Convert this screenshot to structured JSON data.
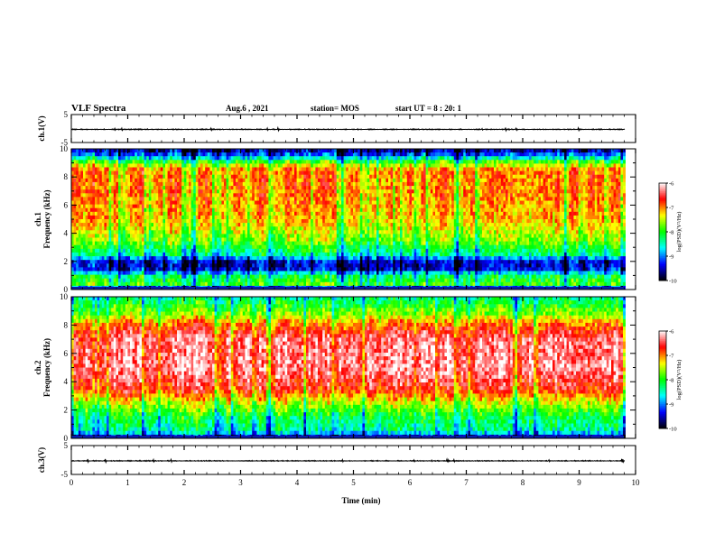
{
  "header": {
    "title": "VLF Spectra",
    "date": "Aug.6  , 2021",
    "station": "station= MOS",
    "start": "start  UT  =   8 : 20: 1"
  },
  "chart_data": {
    "type": "heatmap",
    "x_axis": {
      "label": "Time  (min)",
      "range": [
        0,
        10
      ],
      "ticks": [
        0,
        1,
        2,
        3,
        4,
        5,
        6,
        7,
        8,
        9,
        10
      ],
      "tick_labels": [
        "0",
        "1",
        "2",
        "3",
        "4",
        "5",
        "6",
        "7",
        "8",
        "9",
        "10"
      ],
      "data_end": 9.8
    },
    "panels": [
      {
        "id": "ch1_waveform",
        "type": "line",
        "ylabel": "ch.1(V)",
        "ylim": [
          -5,
          5
        ],
        "tick_labels": [
          "5",
          "-5"
        ]
      },
      {
        "id": "ch1_spectrogram",
        "type": "heatmap",
        "ylabel": "Frequency  (kHz)",
        "channel_label": "ch.1",
        "ylim": [
          0,
          10
        ],
        "yticks": [
          0,
          2,
          4,
          6,
          8,
          10
        ],
        "ytick_labels": [
          "0",
          "2",
          "4",
          "6",
          "8",
          "10"
        ],
        "colorbar": {
          "label": "log(PSD)(V²/Hz)",
          "range": [
            -10,
            -6
          ],
          "tick_labels": [
            "-6",
            "-7",
            "-8",
            "-9",
            "-10"
          ]
        },
        "profile_kHz_to_logPSD": [
          [
            0,
            -9.6
          ],
          [
            0.4,
            -7.8
          ],
          [
            1.0,
            -8.2
          ],
          [
            1.5,
            -9.4
          ],
          [
            2.0,
            -9.3
          ],
          [
            2.5,
            -8.3
          ],
          [
            3.5,
            -7.6
          ],
          [
            5.0,
            -7.1
          ],
          [
            7.0,
            -6.9
          ],
          [
            8.5,
            -6.9
          ],
          [
            9.0,
            -7.6
          ],
          [
            9.5,
            -8.9
          ],
          [
            10,
            -9.6
          ]
        ]
      },
      {
        "id": "ch2_spectrogram",
        "type": "heatmap",
        "ylabel": "Frequency  (kHz)",
        "channel_label": "ch.2",
        "ylim": [
          0,
          10
        ],
        "yticks": [
          0,
          2,
          4,
          6,
          8,
          10
        ],
        "ytick_labels": [
          "0",
          "2",
          "4",
          "6",
          "8",
          "10"
        ],
        "colorbar": {
          "label": "log(PSD)(V²/Hz)",
          "range": [
            -10,
            -6
          ],
          "tick_labels": [
            "-6",
            "-7",
            "-8",
            "-9",
            "-10"
          ]
        },
        "profile_kHz_to_logPSD": [
          [
            0,
            -9.6
          ],
          [
            0.5,
            -8.4
          ],
          [
            1.5,
            -8.1
          ],
          [
            2.5,
            -7.4
          ],
          [
            3.5,
            -6.6
          ],
          [
            5.0,
            -6.2
          ],
          [
            7.0,
            -6.3
          ],
          [
            8.0,
            -6.8
          ],
          [
            8.8,
            -7.6
          ],
          [
            9.5,
            -8.0
          ],
          [
            10,
            -8.3
          ]
        ]
      },
      {
        "id": "ch3_waveform",
        "type": "line",
        "ylabel": "ch.3(V)",
        "ylim": [
          -5,
          5
        ],
        "tick_labels": [
          "5",
          "-5"
        ]
      }
    ],
    "colormap": [
      "#000000",
      "#0000ff",
      "#00ffff",
      "#00ff00",
      "#ffff00",
      "#ff0000",
      "#ffffff"
    ],
    "grid": false
  }
}
